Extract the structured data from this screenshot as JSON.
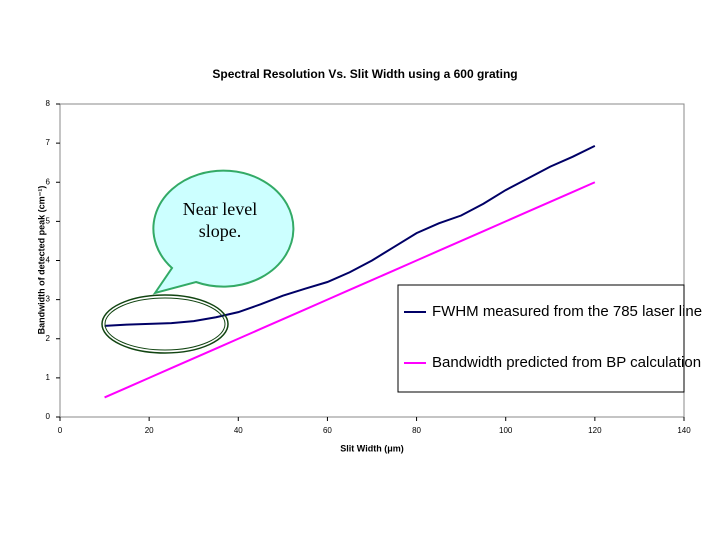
{
  "chart_data": {
    "type": "line",
    "title": "Spectral Resolution Vs. Slit Width using a 600 grating",
    "xlabel": "Slit Width (μm)",
    "ylabel": "Bandwidth of detected peak (cm⁻¹)",
    "x": [
      10,
      15,
      20,
      25,
      30,
      35,
      40,
      45,
      50,
      55,
      60,
      65,
      70,
      75,
      80,
      85,
      90,
      95,
      100,
      105,
      110,
      115,
      120
    ],
    "series": [
      {
        "name": "FWHM measured from the 785 laser line",
        "color": "#000066",
        "values": [
          2.33,
          2.36,
          2.38,
          2.4,
          2.45,
          2.55,
          2.68,
          2.88,
          3.1,
          3.28,
          3.45,
          3.7,
          4.0,
          4.35,
          4.7,
          4.95,
          5.15,
          5.45,
          5.8,
          6.1,
          6.4,
          6.65,
          6.93
        ]
      },
      {
        "name": "Bandwidth predicted from BP calculation",
        "color": "#ff00ff",
        "values": [
          0.5,
          0.75,
          1.0,
          1.25,
          1.5,
          1.75,
          2.0,
          2.25,
          2.5,
          2.75,
          3.0,
          3.25,
          3.5,
          3.75,
          4.0,
          4.25,
          4.5,
          4.75,
          5.0,
          5.25,
          5.5,
          5.75,
          6.0
        ]
      }
    ],
    "xlim": [
      0,
      140
    ],
    "xticks": [
      0,
      20,
      40,
      60,
      80,
      100,
      120,
      140
    ],
    "ylim": [
      0,
      8
    ],
    "yticks": [
      0,
      1,
      2,
      3,
      4,
      5,
      6,
      7,
      8
    ],
    "grid": false,
    "legend": "lower right",
    "annotation": "Near level slope."
  }
}
